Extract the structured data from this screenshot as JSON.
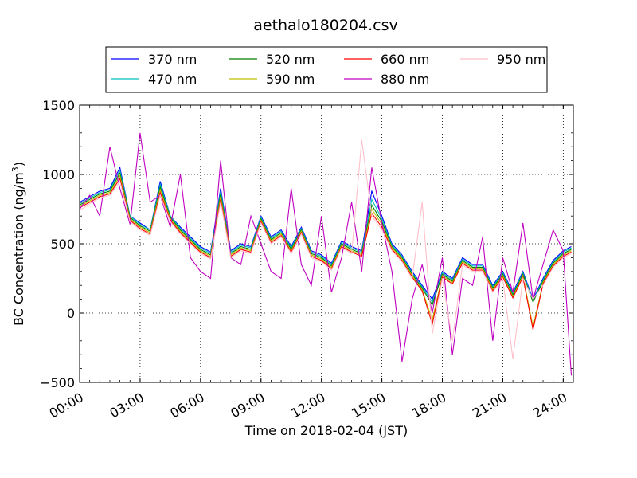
{
  "chart_data": {
    "type": "line",
    "title": "aethalo180204.csv",
    "xlabel": "Time on 2018-02-04 (JST)",
    "ylabel_main": "BC Concentration (ng/m",
    "ylabel_sup": "3",
    "ylabel_end": ")",
    "xlim_hours": [
      0,
      24.5
    ],
    "ylim": [
      -500,
      1500
    ],
    "grid": true,
    "legend_placement": "top-center",
    "x_ticks": [
      {
        "hour": 0,
        "label": "00:00"
      },
      {
        "hour": 3,
        "label": "03:00"
      },
      {
        "hour": 6,
        "label": "06:00"
      },
      {
        "hour": 9,
        "label": "09:00"
      },
      {
        "hour": 12,
        "label": "12:00"
      },
      {
        "hour": 15,
        "label": "15:00"
      },
      {
        "hour": 18,
        "label": "18:00"
      },
      {
        "hour": 21,
        "label": "21:00"
      },
      {
        "hour": 24,
        "label": "24:00"
      }
    ],
    "y_ticks": [
      {
        "value": -500,
        "label": "−500"
      },
      {
        "value": 0,
        "label": "0"
      },
      {
        "value": 500,
        "label": "500"
      },
      {
        "value": 1000,
        "label": "1000"
      },
      {
        "value": 1500,
        "label": "1500"
      }
    ],
    "x_hours": [
      0.0,
      0.5,
      1.0,
      1.5,
      2.0,
      2.5,
      3.0,
      3.5,
      4.0,
      4.5,
      5.0,
      5.5,
      6.0,
      6.5,
      7.0,
      7.5,
      8.0,
      8.5,
      9.0,
      9.5,
      10.0,
      10.5,
      11.0,
      11.5,
      12.0,
      12.5,
      13.0,
      13.5,
      14.0,
      14.5,
      15.0,
      15.5,
      16.0,
      16.5,
      17.0,
      17.5,
      18.0,
      18.5,
      19.0,
      19.5,
      20.0,
      20.5,
      21.0,
      21.5,
      22.0,
      22.5,
      23.0,
      23.5,
      24.0,
      24.4
    ],
    "series": [
      {
        "name": "370 nm",
        "color": "#0000ff",
        "values": [
          800,
          840,
          880,
          900,
          1050,
          700,
          650,
          600,
          950,
          700,
          620,
          550,
          480,
          440,
          900,
          450,
          500,
          480,
          700,
          550,
          600,
          480,
          620,
          450,
          420,
          360,
          520,
          480,
          450,
          880,
          700,
          500,
          420,
          300,
          200,
          100,
          300,
          250,
          400,
          350,
          350,
          200,
          300,
          150,
          300,
          100,
          250,
          380,
          450,
          480
        ]
      },
      {
        "name": "470 nm",
        "color": "#00bfbf",
        "values": [
          790,
          830,
          870,
          890,
          1030,
          700,
          640,
          600,
          930,
          700,
          610,
          540,
          470,
          430,
          880,
          440,
          490,
          470,
          690,
          540,
          590,
          470,
          610,
          440,
          410,
          350,
          510,
          470,
          440,
          820,
          680,
          490,
          410,
          290,
          190,
          80,
          290,
          240,
          390,
          340,
          340,
          190,
          290,
          140,
          290,
          90,
          240,
          370,
          440,
          470
        ]
      },
      {
        "name": "520 nm",
        "color": "#008000",
        "values": [
          780,
          820,
          860,
          880,
          1010,
          690,
          630,
          590,
          910,
          690,
          600,
          530,
          460,
          420,
          860,
          430,
          480,
          460,
          680,
          530,
          580,
          460,
          600,
          430,
          400,
          340,
          500,
          460,
          430,
          780,
          660,
          480,
          400,
          280,
          180,
          60,
          280,
          230,
          380,
          330,
          330,
          180,
          280,
          130,
          280,
          80,
          230,
          360,
          430,
          460
        ]
      },
      {
        "name": "590 nm",
        "color": "#bfbf00",
        "values": [
          770,
          810,
          850,
          870,
          990,
          680,
          620,
          580,
          890,
          680,
          590,
          520,
          450,
          410,
          840,
          420,
          470,
          450,
          670,
          520,
          570,
          450,
          590,
          420,
          390,
          330,
          490,
          450,
          420,
          750,
          640,
          470,
          390,
          270,
          170,
          -50,
          270,
          220,
          370,
          320,
          320,
          170,
          270,
          120,
          270,
          -100,
          220,
          350,
          420,
          450
        ]
      },
      {
        "name": "660 nm",
        "color": "#ff0000",
        "values": [
          760,
          800,
          840,
          860,
          970,
          670,
          610,
          570,
          870,
          670,
          580,
          510,
          440,
          400,
          820,
          410,
          460,
          440,
          660,
          510,
          560,
          440,
          580,
          410,
          380,
          320,
          480,
          440,
          410,
          720,
          620,
          460,
          380,
          260,
          160,
          -80,
          260,
          210,
          360,
          310,
          310,
          160,
          260,
          110,
          260,
          -120,
          210,
          340,
          410,
          440
        ]
      },
      {
        "name": "880 nm",
        "color": "#bf00bf",
        "values": [
          750,
          850,
          700,
          1200,
          900,
          640,
          1300,
          800,
          850,
          620,
          1000,
          400,
          300,
          250,
          1100,
          400,
          350,
          700,
          500,
          300,
          250,
          900,
          350,
          200,
          700,
          150,
          400,
          800,
          300,
          1050,
          650,
          300,
          -350,
          100,
          350,
          0,
          400,
          -300,
          250,
          200,
          550,
          -200,
          400,
          150,
          650,
          100,
          350,
          600,
          450,
          -450
        ]
      },
      {
        "name": "950 nm",
        "color": "#ffc0cb",
        "values": [
          740,
          790,
          830,
          850,
          950,
          660,
          600,
          560,
          850,
          660,
          570,
          500,
          430,
          390,
          800,
          400,
          450,
          430,
          650,
          500,
          550,
          430,
          570,
          400,
          370,
          310,
          470,
          430,
          1250,
          700,
          600,
          450,
          370,
          250,
          800,
          -150,
          250,
          -200,
          350,
          300,
          300,
          150,
          250,
          -330,
          250,
          100,
          200,
          330,
          400,
          430
        ]
      }
    ]
  }
}
